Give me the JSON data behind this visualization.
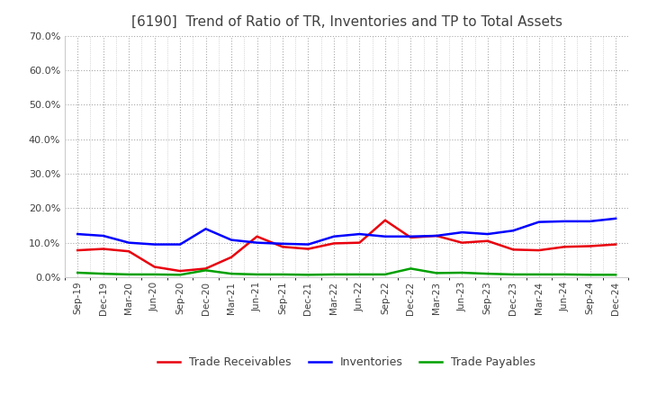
{
  "title": "[6190]  Trend of Ratio of TR, Inventories and TP to Total Assets",
  "x_labels": [
    "Sep-19",
    "Dec-19",
    "Mar-20",
    "Jun-20",
    "Sep-20",
    "Dec-20",
    "Mar-21",
    "Jun-21",
    "Sep-21",
    "Dec-21",
    "Mar-22",
    "Jun-22",
    "Sep-22",
    "Dec-22",
    "Mar-23",
    "Jun-23",
    "Sep-23",
    "Dec-23",
    "Mar-24",
    "Jun-24",
    "Sep-24",
    "Dec-24"
  ],
  "trade_receivables": [
    0.078,
    0.082,
    0.075,
    0.03,
    0.018,
    0.025,
    0.058,
    0.118,
    0.088,
    0.082,
    0.098,
    0.1,
    0.165,
    0.115,
    0.12,
    0.1,
    0.105,
    0.08,
    0.078,
    0.088,
    0.09,
    0.095
  ],
  "inventories": [
    0.125,
    0.12,
    0.1,
    0.095,
    0.095,
    0.14,
    0.108,
    0.1,
    0.097,
    0.095,
    0.118,
    0.125,
    0.118,
    0.118,
    0.12,
    0.13,
    0.125,
    0.135,
    0.16,
    0.162,
    0.162,
    0.17
  ],
  "trade_payables": [
    0.013,
    0.01,
    0.008,
    0.008,
    0.007,
    0.02,
    0.01,
    0.008,
    0.008,
    0.007,
    0.008,
    0.008,
    0.008,
    0.025,
    0.012,
    0.013,
    0.01,
    0.008,
    0.008,
    0.008,
    0.007,
    0.007
  ],
  "tr_color": "#e8000d",
  "inv_color": "#0000ff",
  "tp_color": "#00a000",
  "ylim": [
    0.0,
    0.7
  ],
  "yticks": [
    0.0,
    0.1,
    0.2,
    0.3,
    0.4,
    0.5,
    0.6,
    0.7
  ],
  "bg_color": "#ffffff",
  "grid_color": "#aaaaaa",
  "title_color": "#404040",
  "tick_color": "#404040",
  "legend_labels": [
    "Trade Receivables",
    "Inventories",
    "Trade Payables"
  ]
}
